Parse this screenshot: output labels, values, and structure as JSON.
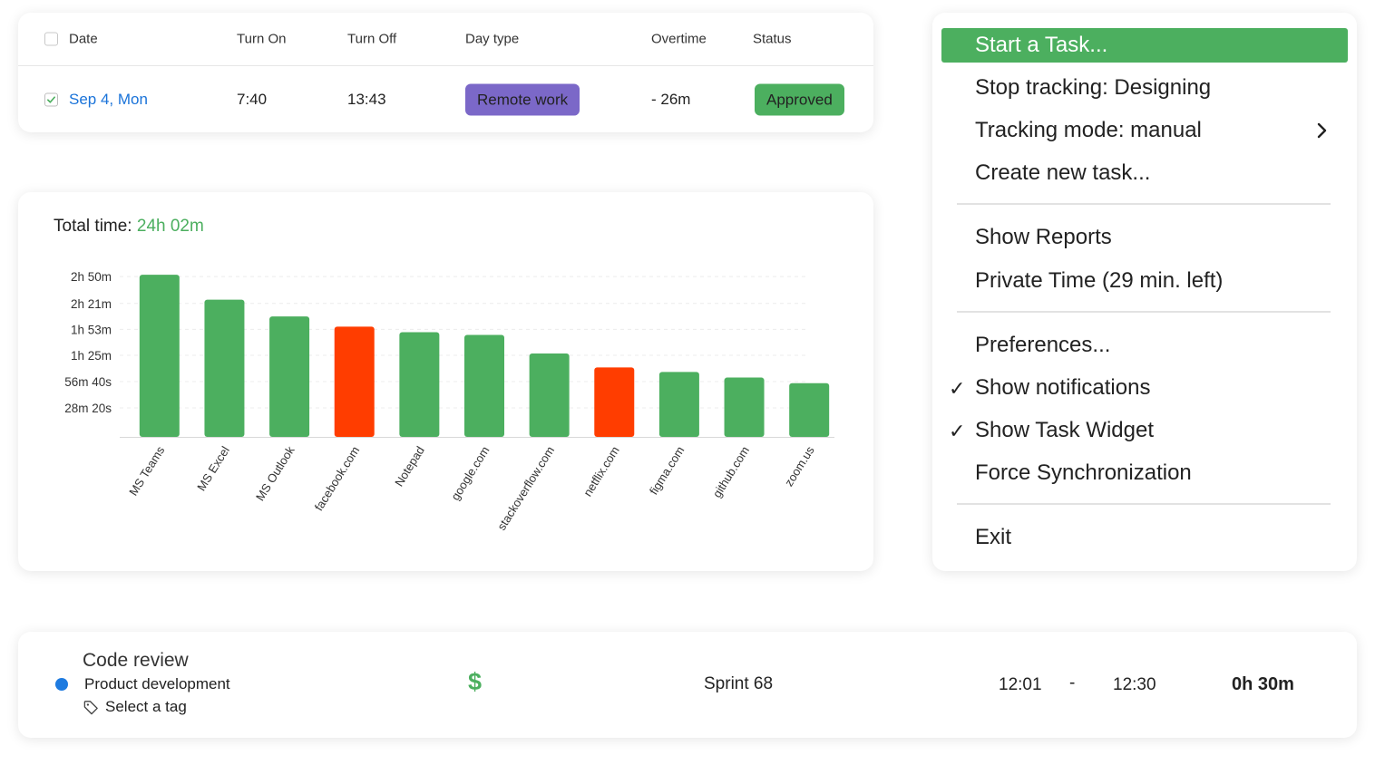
{
  "attendance": {
    "headers": {
      "date": "Date",
      "turn_on": "Turn On",
      "turn_off": "Turn Off",
      "day_type": "Day type",
      "overtime": "Overtime",
      "status": "Status"
    },
    "row": {
      "checked": true,
      "date": "Sep 4, Mon",
      "turn_on": "7:40",
      "turn_off": "13:43",
      "day_type": "Remote work",
      "overtime": "- 26m",
      "status": "Approved"
    },
    "colors": {
      "link": "#1a73d9",
      "day_type_pill": "#7b68c8",
      "status_pill": "#4caf5f"
    }
  },
  "chart": {
    "total_label": "Total time:",
    "total_value": "24h 02m"
  },
  "chart_data": {
    "type": "bar",
    "title": "",
    "xlabel": "",
    "ylabel": "",
    "categories": [
      "MS Teams",
      "MS Excel",
      "MS Outlook",
      "facebook.com",
      "Notepad",
      "google.com",
      "stackoverflow.com",
      "netflix.com",
      "figma.com",
      "github.com",
      "zoom.us"
    ],
    "values_minutes": [
      172,
      145,
      127,
      116,
      110,
      107,
      87,
      72,
      67,
      61,
      55
    ],
    "highlight": [
      false,
      false,
      false,
      true,
      false,
      false,
      false,
      true,
      false,
      false,
      false
    ],
    "colors": {
      "normal": "#4caf5f",
      "highlight": "#ff3d00"
    },
    "y_ticks_minutes": [
      28.33,
      56.67,
      85,
      113,
      141,
      170
    ],
    "y_tick_labels": [
      "28m 20s",
      "56m 40s",
      "1h 25m",
      "1h 53m",
      "2h 21m",
      "2h 50m"
    ],
    "ylim_minutes": [
      -3,
      175
    ],
    "grid": true,
    "legend": "none"
  },
  "menu": {
    "items": [
      {
        "label": "Start a Task...",
        "active": true,
        "checked": false,
        "submenu": false
      },
      {
        "label": "Stop tracking: Designing",
        "active": false,
        "checked": false,
        "submenu": false
      },
      {
        "label": "Tracking mode: manual",
        "active": false,
        "checked": false,
        "submenu": true
      },
      {
        "label": "Create new task...",
        "active": false,
        "checked": false,
        "submenu": false
      },
      {
        "label": "Show Reports",
        "active": false,
        "checked": false,
        "submenu": false
      },
      {
        "label": "Private Time (29 min. left)",
        "active": false,
        "checked": false,
        "submenu": false
      },
      {
        "label": "Preferences...",
        "active": false,
        "checked": false,
        "submenu": false
      },
      {
        "label": "Show notifications",
        "active": false,
        "checked": true,
        "submenu": false
      },
      {
        "label": "Show Task Widget",
        "active": false,
        "checked": true,
        "submenu": false
      },
      {
        "label": "Force Synchronization",
        "active": false,
        "checked": false,
        "submenu": false
      },
      {
        "label": "Exit",
        "active": false,
        "checked": false,
        "submenu": false
      }
    ],
    "check_glyph": "✓",
    "accent": "#4caf5f"
  },
  "task": {
    "title": "Code review",
    "project": "Product development",
    "tag_placeholder": "Select a tag",
    "billable_symbol": "$",
    "sprint": "Sprint 68",
    "start": "12:01",
    "separator": "-",
    "end": "12:30",
    "duration": "0h 30m",
    "project_color": "#1e7be0"
  }
}
